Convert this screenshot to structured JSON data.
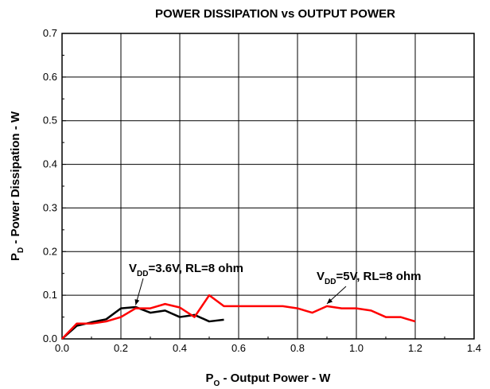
{
  "chart_data": {
    "type": "line",
    "title": "POWER DISSIPATION vs OUTPUT POWER",
    "xlabel": {
      "main": "P",
      "sub": "O",
      "rest": " - Output Power - W"
    },
    "ylabel": {
      "main": "P",
      "sub": "D",
      "rest": " - Power Dissipation - W"
    },
    "xlim": [
      0.0,
      1.4
    ],
    "ylim": [
      0.0,
      0.7
    ],
    "xticks": [
      "0.0",
      "0.2",
      "0.4",
      "0.6",
      "0.8",
      "1.0",
      "1.2",
      "1.4"
    ],
    "yticks": [
      "0.0",
      "0.1",
      "0.2",
      "0.3",
      "0.4",
      "0.5",
      "0.6",
      "0.7"
    ],
    "grid": true,
    "series": [
      {
        "color": "#000000",
        "x": [
          0.0,
          0.05,
          0.1,
          0.15,
          0.2,
          0.25,
          0.3,
          0.35,
          0.4,
          0.45,
          0.5,
          0.55
        ],
        "y": [
          0.0,
          0.03,
          0.038,
          0.045,
          0.07,
          0.073,
          0.06,
          0.065,
          0.05,
          0.055,
          0.04,
          0.044
        ]
      },
      {
        "color": "#ff0000",
        "x": [
          0.0,
          0.05,
          0.1,
          0.15,
          0.2,
          0.25,
          0.3,
          0.35,
          0.4,
          0.45,
          0.5,
          0.55,
          0.6,
          0.65,
          0.7,
          0.75,
          0.8,
          0.85,
          0.9,
          0.95,
          1.0,
          1.05,
          1.1,
          1.15,
          1.2
        ],
        "y": [
          0.0,
          0.035,
          0.035,
          0.04,
          0.05,
          0.07,
          0.07,
          0.08,
          0.072,
          0.05,
          0.1,
          0.075,
          0.075,
          0.075,
          0.075,
          0.075,
          0.07,
          0.06,
          0.075,
          0.07,
          0.07,
          0.065,
          0.05,
          0.05,
          0.04
        ]
      }
    ],
    "annotations": [
      {
        "main": "V",
        "sub": "DD",
        "rest": "=3.6V, RL=8 ohm",
        "arrow_to": [
          0.25,
          0.072
        ]
      },
      {
        "main": "V",
        "sub": "DD",
        "rest": "=5V, RL=8 ohm",
        "arrow_to": [
          0.9,
          0.075
        ]
      }
    ]
  }
}
